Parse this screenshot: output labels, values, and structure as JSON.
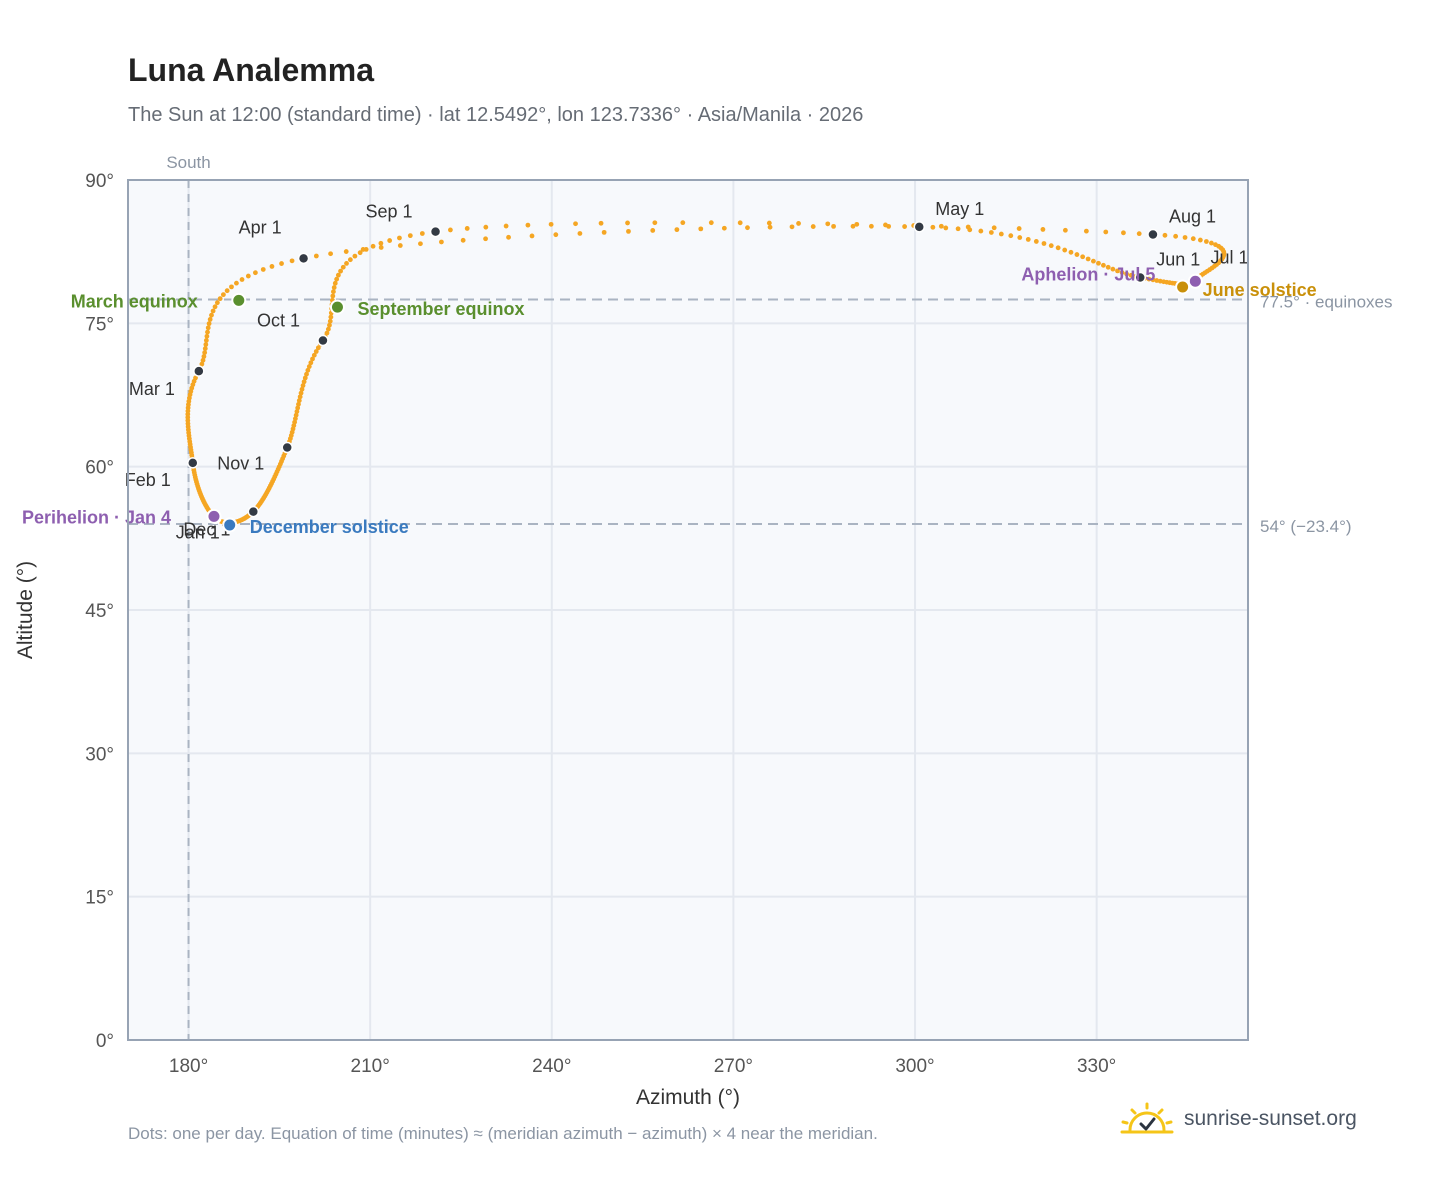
{
  "title": "Luna Analemma",
  "subtitle": "The Sun at 12:00 (standard time) · lat 12.5492°, lon 123.7336° · Asia/Manila · 2026",
  "footnote": "Dots: one per day. Equation of time (minutes) ≈ (meridian azimuth − azimuth) × 4 near the meridian.",
  "brand": {
    "name": "sunrise-sunset.org",
    "icon": "sun-check-icon"
  },
  "colors": {
    "path": "#f5a623",
    "month_dot": "#333a44",
    "equinox": "#5a8f2e",
    "june_solstice": "#c9900a",
    "december_solstice": "#3a7abf",
    "apsis": "#8e5fb0",
    "plot_bg": "#f7f9fc",
    "grid": "#e4e8ef",
    "frame": "#97a3b4",
    "refline": "#aab4c2"
  },
  "chart_data": {
    "type": "scatter",
    "title": "Luna Analemma",
    "xlabel": "Azimuth (°)",
    "ylabel": "Altitude (°)",
    "xlim": [
      170,
      355
    ],
    "ylim": [
      0,
      90
    ],
    "xticks": [
      180,
      210,
      240,
      270,
      300,
      330
    ],
    "xtick_labels": [
      "180°",
      "210°",
      "240°",
      "270°",
      "300°",
      "330°"
    ],
    "yticks": [
      0,
      15,
      30,
      45,
      60,
      75,
      90
    ],
    "ytick_labels": [
      "0°",
      "15°",
      "30°",
      "45°",
      "60°",
      "75°",
      "90°"
    ],
    "grid": true,
    "meridian": {
      "azimuth": 180,
      "label": "South"
    },
    "reference_lines": [
      {
        "altitude": 77.5,
        "label": "77.5° · equinoxes"
      },
      {
        "altitude": 54,
        "label": "54° (−23.4°)"
      }
    ],
    "month_markers": [
      {
        "label": "Jan 1",
        "azimuth": 184.5,
        "altitude": 54.6
      },
      {
        "label": "Feb 1",
        "azimuth": 180.7,
        "altitude": 60.4
      },
      {
        "label": "Mar 1",
        "azimuth": 181.7,
        "altitude": 70.0
      },
      {
        "label": "Apr 1",
        "azimuth": 199.0,
        "altitude": 81.8
      },
      {
        "label": "May 1",
        "azimuth": 300.7,
        "altitude": 85.1
      },
      {
        "label": "Jun 1",
        "azimuth": 337.2,
        "altitude": 79.8
      },
      {
        "label": "Jul 1",
        "azimuth": 346.5,
        "altitude": 79.6
      },
      {
        "label": "Aug 1",
        "azimuth": 339.3,
        "altitude": 84.3
      },
      {
        "label": "Sep 1",
        "azimuth": 220.8,
        "altitude": 84.6
      },
      {
        "label": "Oct 1",
        "azimuth": 202.2,
        "altitude": 73.2
      },
      {
        "label": "Nov 1",
        "azimuth": 196.3,
        "altitude": 62.0
      },
      {
        "label": "Dec 1",
        "azimuth": 190.7,
        "altitude": 55.3
      }
    ],
    "special_points": [
      {
        "label": "March equinox",
        "azimuth": 188.3,
        "altitude": 77.4,
        "kind": "equinox"
      },
      {
        "label": "September equinox",
        "azimuth": 204.6,
        "altitude": 76.7,
        "kind": "equinox"
      },
      {
        "label": "June solstice",
        "azimuth": 344.2,
        "altitude": 78.8,
        "kind": "june_solstice"
      },
      {
        "label": "December solstice",
        "azimuth": 186.8,
        "altitude": 53.9,
        "kind": "december_solstice"
      },
      {
        "label": "Perihelion · Jan 4",
        "azimuth": 184.2,
        "altitude": 54.8,
        "kind": "apsis"
      },
      {
        "label": "Aphelion · Jul 5",
        "azimuth": 346.3,
        "altitude": 79.4,
        "kind": "apsis"
      }
    ]
  }
}
